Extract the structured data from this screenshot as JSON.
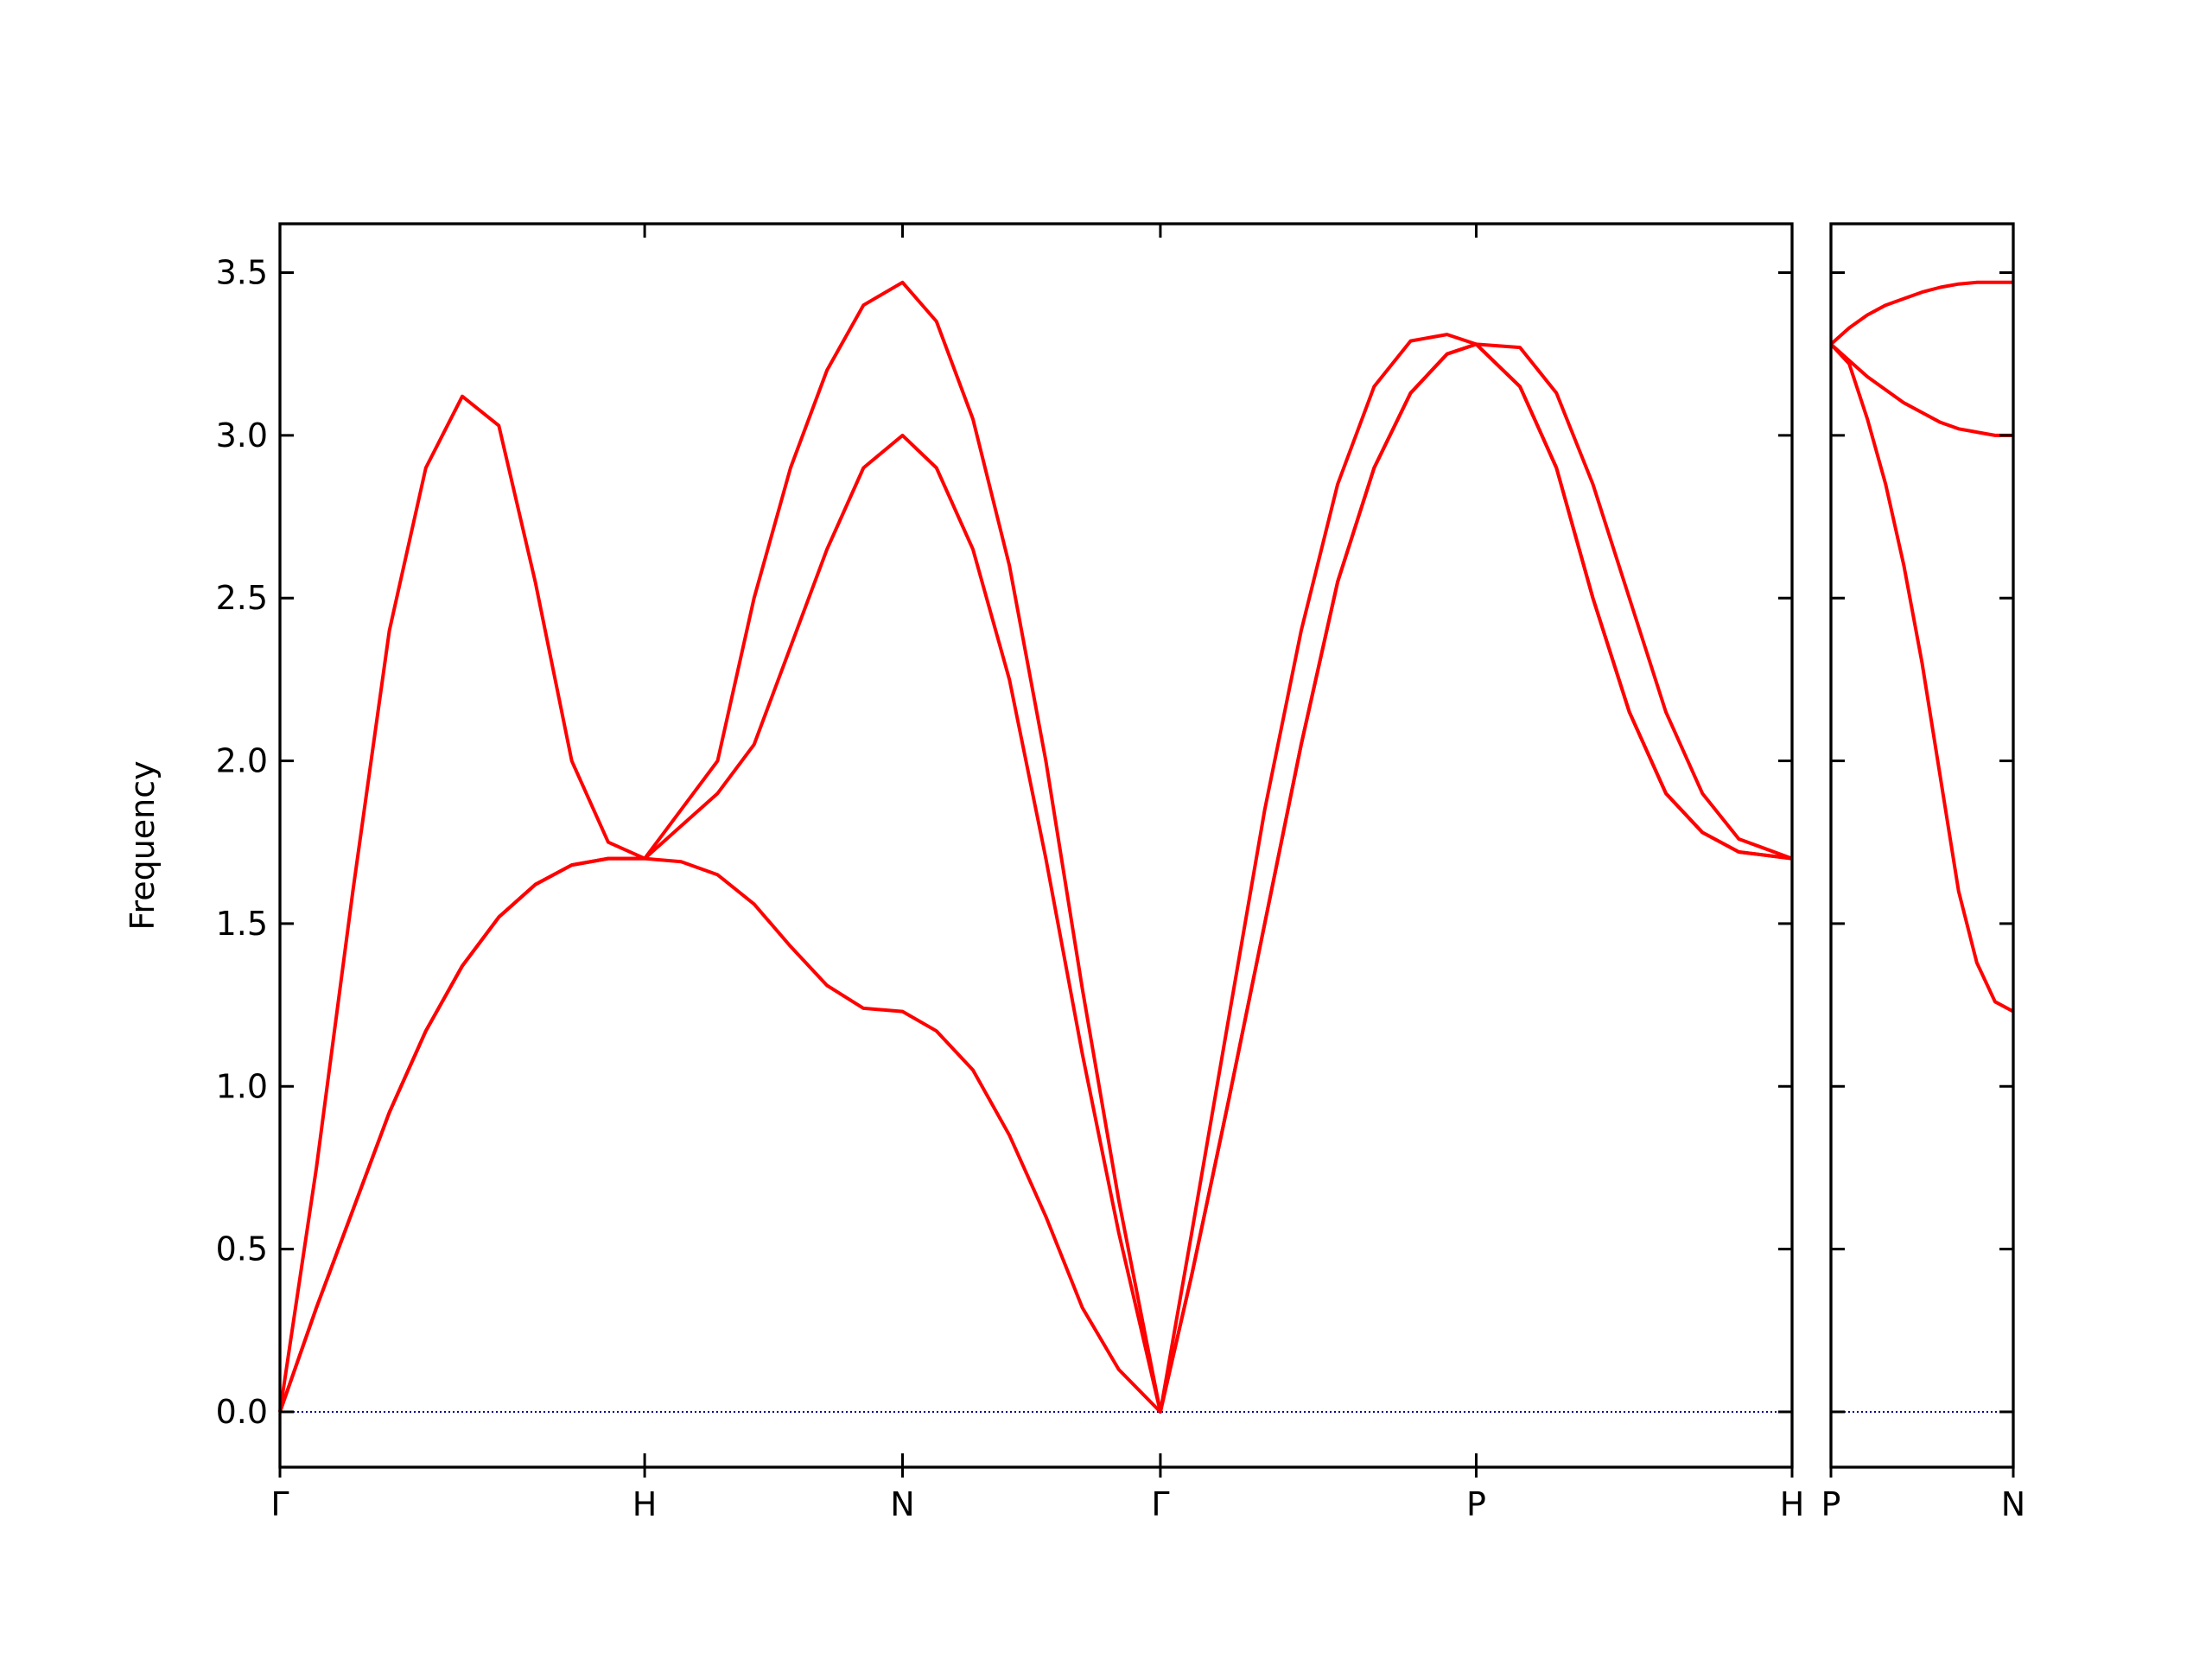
{
  "chart_data": [
    {
      "type": "line",
      "ylabel": "Frequency",
      "x": [
        0,
        0.1,
        0.2,
        0.3,
        0.4,
        0.5,
        0.6,
        0.7,
        0.8,
        0.9,
        1.0,
        1.1,
        1.2,
        1.3,
        1.4,
        1.5,
        1.6,
        1.707,
        1.8,
        1.9,
        2.0,
        2.1,
        2.2,
        2.3,
        2.414,
        2.5,
        2.6,
        2.7,
        2.8,
        2.9,
        3.0,
        3.1,
        3.2,
        3.28,
        3.4,
        3.5,
        3.6,
        3.7,
        3.8,
        3.9,
        4.0,
        4.146
      ],
      "series": [
        {
          "color": "#ff0000",
          "values": [
            0,
            0.32,
            0.62,
            0.92,
            1.17,
            1.37,
            1.52,
            1.62,
            1.68,
            1.7,
            1.7,
            1.69,
            1.65,
            1.56,
            1.43,
            1.31,
            1.24,
            1.23,
            1.17,
            1.05,
            0.85,
            0.6,
            0.32,
            0.13,
            0,
            0.42,
            0.95,
            1.5,
            2.05,
            2.55,
            2.9,
            3.13,
            3.25,
            3.28,
            3.15,
            2.9,
            2.5,
            2.15,
            1.9,
            1.78,
            1.72,
            1.7
          ]
        },
        {
          "color": "#ff0000",
          "values": [
            0,
            0.32,
            0.62,
            0.92,
            1.17,
            1.37,
            1.52,
            1.62,
            1.68,
            1.7,
            1.7,
            1.8,
            1.9,
            2.05,
            2.35,
            2.65,
            2.9,
            3.0,
            2.9,
            2.65,
            2.25,
            1.7,
            1.1,
            0.55,
            0,
            0.42,
            0.95,
            1.5,
            2.05,
            2.55,
            2.9,
            3.13,
            3.25,
            3.28,
            3.15,
            2.9,
            2.5,
            2.15,
            1.9,
            1.78,
            1.72,
            1.7
          ]
        },
        {
          "color": "#ff0000",
          "values": [
            0,
            0.75,
            1.6,
            2.4,
            2.9,
            3.12,
            3.03,
            2.55,
            2.0,
            1.75,
            1.7,
            1.85,
            2.0,
            2.5,
            2.9,
            3.2,
            3.4,
            3.47,
            3.35,
            3.05,
            2.6,
            2.0,
            1.3,
            0.65,
            0,
            0.55,
            1.2,
            1.85,
            2.4,
            2.85,
            3.15,
            3.29,
            3.31,
            3.28,
            3.27,
            3.13,
            2.85,
            2.5,
            2.15,
            1.9,
            1.76,
            1.7
          ]
        }
      ],
      "xlim": [
        0,
        4.146
      ],
      "xticks": [
        {
          "value": 0,
          "label": "Γ"
        },
        {
          "value": 1,
          "label": "H"
        },
        {
          "value": 1.707,
          "label": "N"
        },
        {
          "value": 2.414,
          "label": "Γ"
        },
        {
          "value": 3.28,
          "label": "P"
        },
        {
          "value": 4.146,
          "label": "H"
        }
      ],
      "ylim": [
        -0.17,
        3.65
      ],
      "yticks": [
        {
          "value": 0,
          "label": "0.0"
        },
        {
          "value": 0.5,
          "label": "0.5"
        },
        {
          "value": 1,
          "label": "1.0"
        },
        {
          "value": 1.5,
          "label": "1.5"
        },
        {
          "value": 2,
          "label": "2.0"
        },
        {
          "value": 2.5,
          "label": "2.5"
        },
        {
          "value": 3,
          "label": "3.0"
        },
        {
          "value": 3.5,
          "label": "3.5"
        }
      ],
      "hline": 0,
      "hline_color": "#00008b"
    },
    {
      "type": "line",
      "x": [
        0,
        0.05,
        0.1,
        0.15,
        0.2,
        0.25,
        0.3,
        0.35,
        0.4,
        0.45,
        0.5
      ],
      "series": [
        {
          "color": "#ff0000",
          "values": [
            3.28,
            3.22,
            3.05,
            2.85,
            2.6,
            2.3,
            1.95,
            1.6,
            1.38,
            1.26,
            1.23
          ]
        },
        {
          "color": "#ff0000",
          "values": [
            3.28,
            3.23,
            3.18,
            3.14,
            3.1,
            3.07,
            3.04,
            3.02,
            3.01,
            3.0,
            3.0
          ]
        },
        {
          "color": "#ff0000",
          "values": [
            3.28,
            3.33,
            3.37,
            3.4,
            3.42,
            3.44,
            3.455,
            3.465,
            3.47,
            3.47,
            3.47
          ]
        }
      ],
      "xlim": [
        0,
        0.5
      ],
      "xticks": [
        {
          "value": 0,
          "label": "P"
        },
        {
          "value": 0.5,
          "label": "N"
        }
      ],
      "ylim": [
        -0.17,
        3.65
      ],
      "yticks": [
        0,
        0.5,
        1,
        1.5,
        2,
        2.5,
        3,
        3.5
      ],
      "ytick_labels": false,
      "hline": 0,
      "hline_color": "#00008b"
    }
  ]
}
